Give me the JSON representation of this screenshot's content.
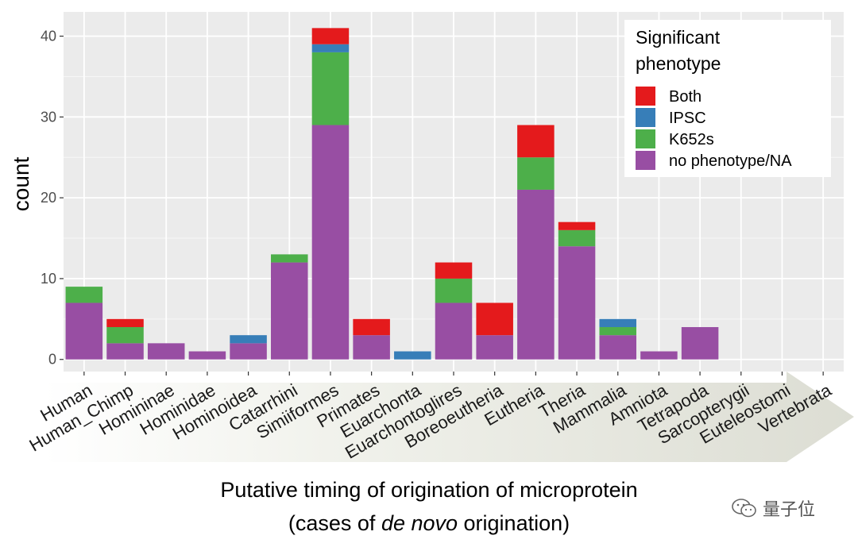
{
  "chart_data": {
    "type": "bar",
    "stacked": true,
    "ylabel": "count",
    "ylim": [
      -1.5,
      43
    ],
    "yticks": [
      0,
      10,
      20,
      30,
      40
    ],
    "categories": [
      "Human",
      "Human_Chimp",
      "Homininae",
      "Hominidae",
      "Hominoidea",
      "Catarrhini",
      "Simiiformes",
      "Primates",
      "Euarchonta",
      "Euarchontoglires",
      "Boreoeutheria",
      "Eutheria",
      "Theria",
      "Mammalia",
      "Amniota",
      "Tetrapoda",
      "Sarcopterygii",
      "Euteleostomi",
      "Vertebrata"
    ],
    "series": [
      {
        "name": "no phenotype/NA",
        "color": "#984EA3",
        "values": [
          7,
          2,
          2,
          1,
          2,
          12,
          29,
          3,
          0,
          7,
          3,
          21,
          14,
          3,
          1,
          4,
          0,
          0,
          0
        ]
      },
      {
        "name": "K652s",
        "color": "#4DAF4A",
        "values": [
          2,
          2,
          0,
          0,
          0,
          1,
          9,
          0,
          0,
          3,
          0,
          4,
          2,
          1,
          0,
          0,
          0,
          0,
          0
        ]
      },
      {
        "name": "IPSC",
        "color": "#377EB8",
        "values": [
          0,
          0,
          0,
          0,
          1,
          0,
          1,
          0,
          1,
          0,
          0,
          0,
          0,
          1,
          0,
          0,
          0,
          0,
          0
        ]
      },
      {
        "name": "Both",
        "color": "#E41A1C",
        "values": [
          0,
          1,
          0,
          0,
          0,
          0,
          2,
          2,
          0,
          2,
          4,
          4,
          1,
          0,
          0,
          0,
          0,
          0,
          0
        ]
      }
    ],
    "legend": {
      "title_lines": [
        "Significant",
        "phenotype"
      ],
      "order": [
        "Both",
        "IPSC",
        "K652s",
        "no phenotype/NA"
      ],
      "position": "top-right"
    },
    "grid": true,
    "panel_color": "#EBEBEB",
    "arrow_color": "#E6E7E0"
  },
  "xtitle": {
    "line1": "Putative timing of origination of microprotein",
    "line2_pre": "(cases of ",
    "line2_em": "de novo",
    "line2_post": " origination)"
  },
  "watermark": {
    "text": "量子位",
    "icon": "wechat-icon"
  }
}
